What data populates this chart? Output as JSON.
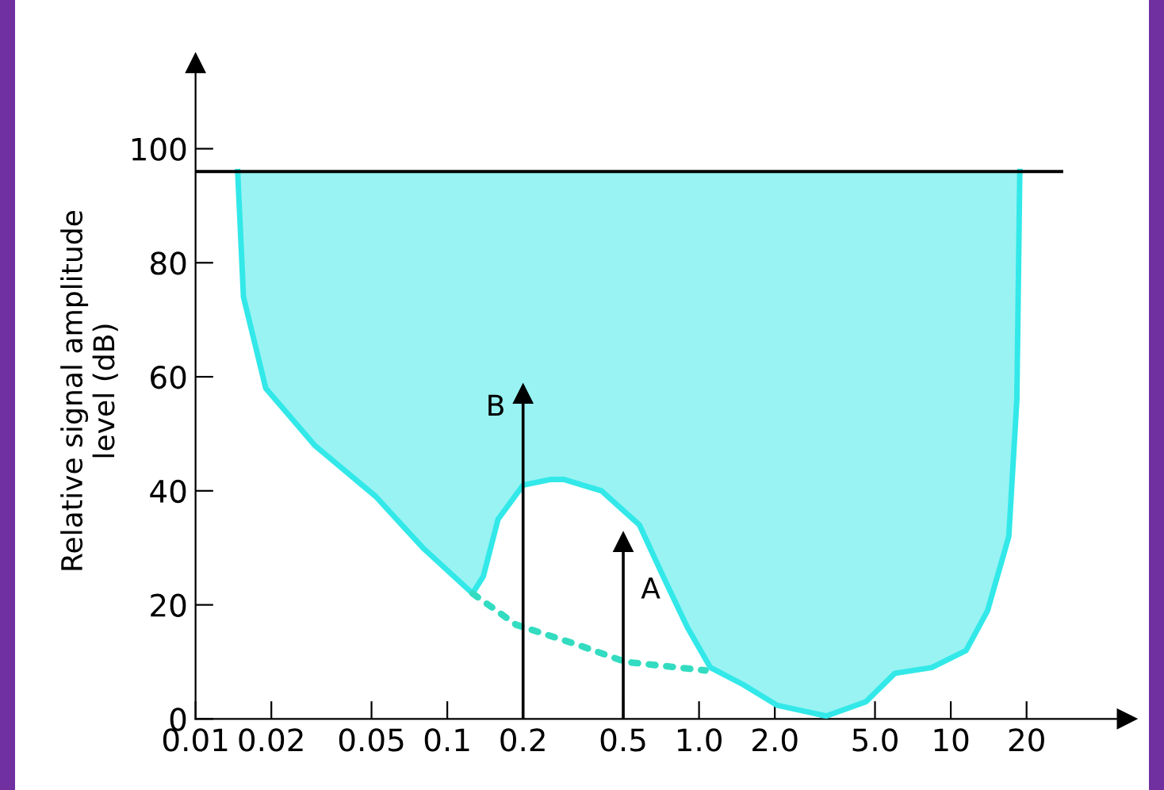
{
  "chart_data": {
    "type": "line",
    "ylabel": "Relative signal amplitude\nlevel (dB)",
    "log": "x",
    "xlim": [
      0.01,
      50
    ],
    "ylim": [
      0,
      115
    ],
    "xticks": [
      {
        "value": 0.01,
        "label": "0.01"
      },
      {
        "value": 0.02,
        "label": "0.02"
      },
      {
        "value": 0.05,
        "label": "0.05"
      },
      {
        "value": 0.1,
        "label": "0.1"
      },
      {
        "value": 0.2,
        "label": "0.2"
      },
      {
        "value": 0.5,
        "label": "0.5"
      },
      {
        "value": 1,
        "label": "1.0"
      },
      {
        "value": 2,
        "label": "2.0"
      },
      {
        "value": 5,
        "label": "5.0"
      },
      {
        "value": 10,
        "label": "10"
      },
      {
        "value": 20,
        "label": "20"
      }
    ],
    "yticks": [
      0,
      20,
      40,
      60,
      80,
      100
    ],
    "grid": false,
    "series": [
      {
        "color": "#33e8e8",
        "line_style": "solid",
        "x": [
          0.0147,
          0.0155,
          0.019,
          0.0297,
          0.052,
          0.08,
          0.126,
          0.139,
          0.159,
          0.2,
          0.258,
          0.29,
          0.41,
          0.58,
          0.72,
          0.9,
          1.11,
          1.5,
          2.04,
          3.2,
          4.6,
          6.0,
          8.4,
          11.5,
          14,
          17,
          18.3,
          18.8
        ],
        "values": [
          96,
          74,
          58,
          48,
          39,
          30,
          22,
          25,
          35,
          41,
          42,
          42,
          40,
          34,
          25,
          16,
          9,
          6,
          2.4,
          0.5,
          3,
          8,
          9,
          12,
          19,
          32,
          56,
          96
        ],
        "lower": [
          96,
          74,
          58,
          48,
          39,
          30,
          22,
          25,
          35,
          41,
          42,
          42,
          40,
          34,
          25,
          16,
          9,
          6,
          2.4,
          0.5,
          3,
          8,
          9,
          12,
          19,
          32,
          56,
          96
        ],
        "upper": [
          96,
          96,
          96,
          96,
          96,
          96,
          96,
          96,
          96,
          96,
          96,
          96,
          96,
          96,
          96,
          96,
          96,
          96,
          96,
          96,
          96,
          96,
          96,
          96,
          96,
          96,
          96,
          96
        ]
      },
      {
        "color": "#33dcc0",
        "line_style": "dotted",
        "x": [
          0.126,
          0.188,
          0.33,
          0.51,
          1.06
        ],
        "values": [
          22,
          16.5,
          13,
          10,
          8.5
        ]
      },
      {
        "type": "lollipop",
        "color": "#000000",
        "marker": "triangle",
        "x": [
          0.2,
          0.5
        ],
        "values": [
          57,
          31
        ]
      }
    ],
    "ref_lines": [
      {
        "axis": "y",
        "value": 96,
        "color": "#000000",
        "line_style": "solid"
      }
    ],
    "annotations": [
      "B",
      "A"
    ]
  }
}
